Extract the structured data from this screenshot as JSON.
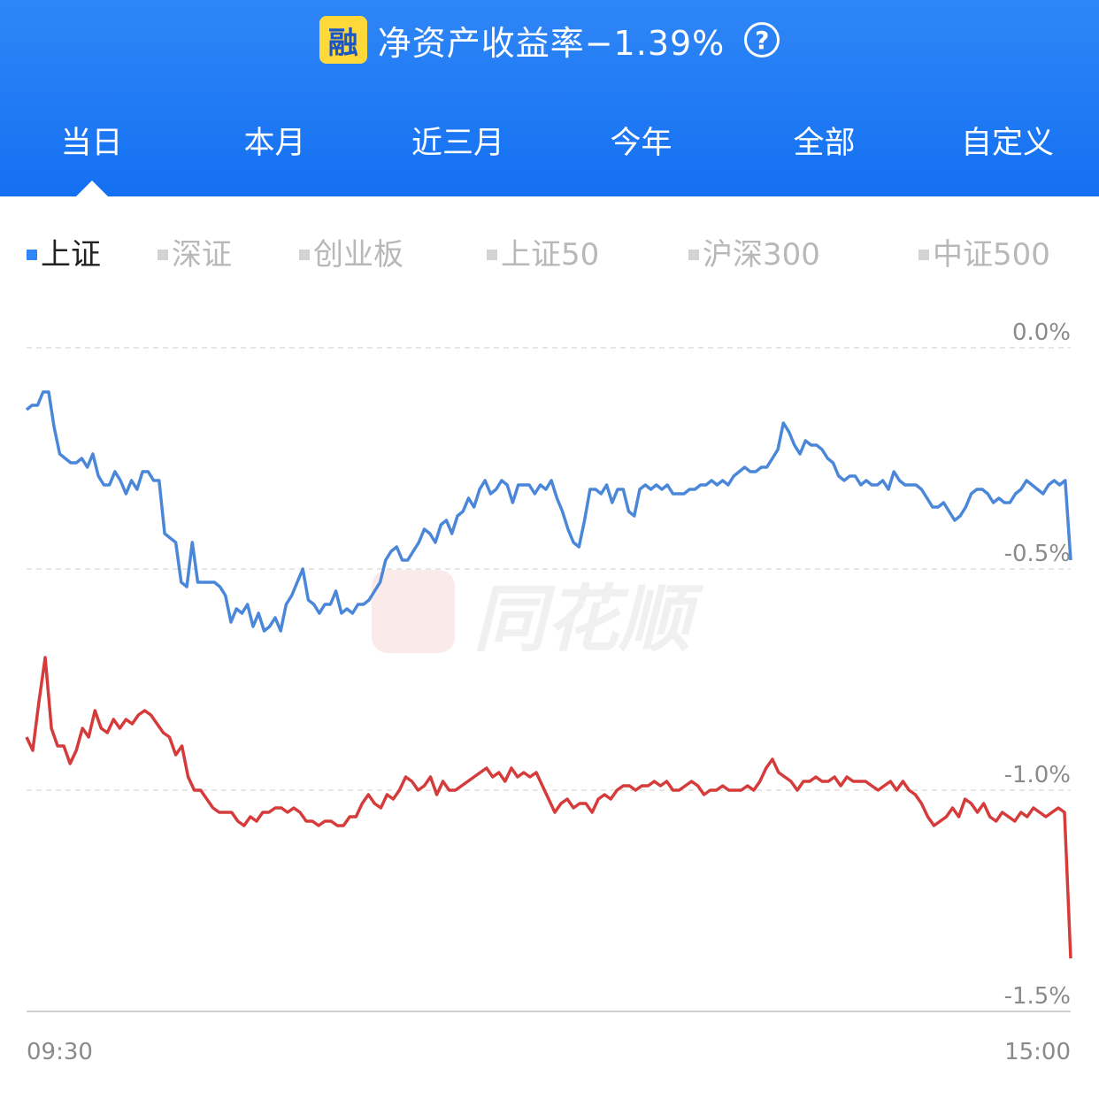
{
  "header": {
    "badge": "融",
    "title": "净资产收益率−1.39%",
    "help_icon": "question-circle-icon",
    "tabs": [
      "当日",
      "本月",
      "近三月",
      "今年",
      "全部",
      "自定义"
    ],
    "active_tab": 0
  },
  "legend": {
    "items": [
      "上证",
      "深证",
      "创业板",
      "上证50",
      "沪深300",
      "中证500"
    ],
    "active": 0
  },
  "watermark": "同花顺",
  "colors": {
    "header": "#1a78f4",
    "index_line": "#4a87d8",
    "account_line": "#d63b3b",
    "grid": "#dddddd"
  },
  "chart_data": {
    "type": "line",
    "x_start": "09:30",
    "x_end": "15:00",
    "y_ticks": [
      "0.0%",
      "-0.5%",
      "-1.0%",
      "-1.5%"
    ],
    "ylim": [
      -1.5,
      0.0
    ],
    "series": [
      {
        "color": "#4a87d8",
        "values": [
          -0.14,
          -0.13,
          -0.13,
          -0.1,
          -0.1,
          -0.18,
          -0.24,
          -0.25,
          -0.26,
          -0.26,
          -0.25,
          -0.27,
          -0.24,
          -0.29,
          -0.31,
          -0.31,
          -0.28,
          -0.3,
          -0.33,
          -0.3,
          -0.32,
          -0.28,
          -0.28,
          -0.3,
          -0.3,
          -0.42,
          -0.43,
          -0.44,
          -0.53,
          -0.54,
          -0.44,
          -0.53,
          -0.53,
          -0.53,
          -0.53,
          -0.54,
          -0.56,
          -0.62,
          -0.59,
          -0.6,
          -0.58,
          -0.63,
          -0.6,
          -0.64,
          -0.63,
          -0.61,
          -0.64,
          -0.58,
          -0.56,
          -0.53,
          -0.5,
          -0.57,
          -0.58,
          -0.6,
          -0.58,
          -0.58,
          -0.55,
          -0.6,
          -0.59,
          -0.6,
          -0.58,
          -0.58,
          -0.57,
          -0.55,
          -0.53,
          -0.48,
          -0.46,
          -0.45,
          -0.48,
          -0.48,
          -0.46,
          -0.44,
          -0.41,
          -0.42,
          -0.44,
          -0.4,
          -0.39,
          -0.42,
          -0.38,
          -0.37,
          -0.34,
          -0.36,
          -0.32,
          -0.3,
          -0.33,
          -0.32,
          -0.3,
          -0.31,
          -0.35,
          -0.31,
          -0.31,
          -0.31,
          -0.33,
          -0.31,
          -0.32,
          -0.3,
          -0.34,
          -0.37,
          -0.41,
          -0.44,
          -0.45,
          -0.39,
          -0.32,
          -0.32,
          -0.33,
          -0.31,
          -0.35,
          -0.32,
          -0.32,
          -0.37,
          -0.38,
          -0.32,
          -0.31,
          -0.32,
          -0.31,
          -0.32,
          -0.31,
          -0.33,
          -0.33,
          -0.33,
          -0.32,
          -0.32,
          -0.31,
          -0.31,
          -0.3,
          -0.31,
          -0.3,
          -0.31,
          -0.29,
          -0.28,
          -0.27,
          -0.28,
          -0.28,
          -0.27,
          -0.27,
          -0.25,
          -0.23,
          -0.17,
          -0.19,
          -0.22,
          -0.24,
          -0.21,
          -0.22,
          -0.22,
          -0.23,
          -0.25,
          -0.26,
          -0.29,
          -0.3,
          -0.29,
          -0.29,
          -0.31,
          -0.3,
          -0.31,
          -0.31,
          -0.3,
          -0.32,
          -0.28,
          -0.3,
          -0.31,
          -0.31,
          -0.31,
          -0.32,
          -0.34,
          -0.36,
          -0.36,
          -0.35,
          -0.37,
          -0.39,
          -0.38,
          -0.36,
          -0.33,
          -0.32,
          -0.32,
          -0.33,
          -0.35,
          -0.34,
          -0.35,
          -0.35,
          -0.33,
          -0.32,
          -0.3,
          -0.31,
          -0.32,
          -0.33,
          -0.31,
          -0.3,
          -0.31,
          -0.3,
          -0.48
        ]
      },
      {
        "color": "#d63b3b",
        "values": [
          -0.88,
          -0.91,
          -0.8,
          -0.7,
          -0.86,
          -0.9,
          -0.9,
          -0.94,
          -0.91,
          -0.86,
          -0.88,
          -0.82,
          -0.86,
          -0.87,
          -0.84,
          -0.86,
          -0.84,
          -0.85,
          -0.83,
          -0.82,
          -0.83,
          -0.85,
          -0.87,
          -0.88,
          -0.92,
          -0.9,
          -0.97,
          -1.0,
          -1.0,
          -1.02,
          -1.04,
          -1.05,
          -1.05,
          -1.05,
          -1.07,
          -1.08,
          -1.06,
          -1.07,
          -1.05,
          -1.05,
          -1.04,
          -1.04,
          -1.05,
          -1.04,
          -1.05,
          -1.07,
          -1.07,
          -1.08,
          -1.07,
          -1.07,
          -1.08,
          -1.08,
          -1.06,
          -1.06,
          -1.03,
          -1.01,
          -1.03,
          -1.04,
          -1.01,
          -1.02,
          -1.0,
          -0.97,
          -0.98,
          -1.0,
          -0.99,
          -0.97,
          -1.01,
          -0.98,
          -1.0,
          -1.0,
          -0.99,
          -0.98,
          -0.97,
          -0.96,
          -0.95,
          -0.97,
          -0.96,
          -0.98,
          -0.95,
          -0.97,
          -0.96,
          -0.97,
          -0.96,
          -0.99,
          -1.02,
          -1.05,
          -1.03,
          -1.02,
          -1.04,
          -1.03,
          -1.03,
          -1.05,
          -1.02,
          -1.01,
          -1.02,
          -1.0,
          -0.99,
          -0.99,
          -1.0,
          -0.99,
          -0.99,
          -0.98,
          -0.99,
          -0.98,
          -1.0,
          -1.0,
          -0.99,
          -0.98,
          -0.99,
          -1.01,
          -1.0,
          -1.0,
          -0.99,
          -1.0,
          -1.0,
          -1.0,
          -0.99,
          -1.0,
          -0.98,
          -0.95,
          -0.93,
          -0.96,
          -0.97,
          -0.98,
          -1.0,
          -0.98,
          -0.98,
          -0.97,
          -0.98,
          -0.98,
          -0.97,
          -0.99,
          -0.97,
          -0.98,
          -0.98,
          -0.98,
          -0.99,
          -1.0,
          -0.99,
          -0.98,
          -1.0,
          -0.98,
          -1.0,
          -1.01,
          -1.03,
          -1.06,
          -1.08,
          -1.07,
          -1.06,
          -1.04,
          -1.06,
          -1.02,
          -1.03,
          -1.05,
          -1.03,
          -1.06,
          -1.07,
          -1.05,
          -1.06,
          -1.07,
          -1.05,
          -1.06,
          -1.04,
          -1.05,
          -1.06,
          -1.05,
          -1.04,
          -1.05,
          -1.38
        ]
      }
    ]
  }
}
